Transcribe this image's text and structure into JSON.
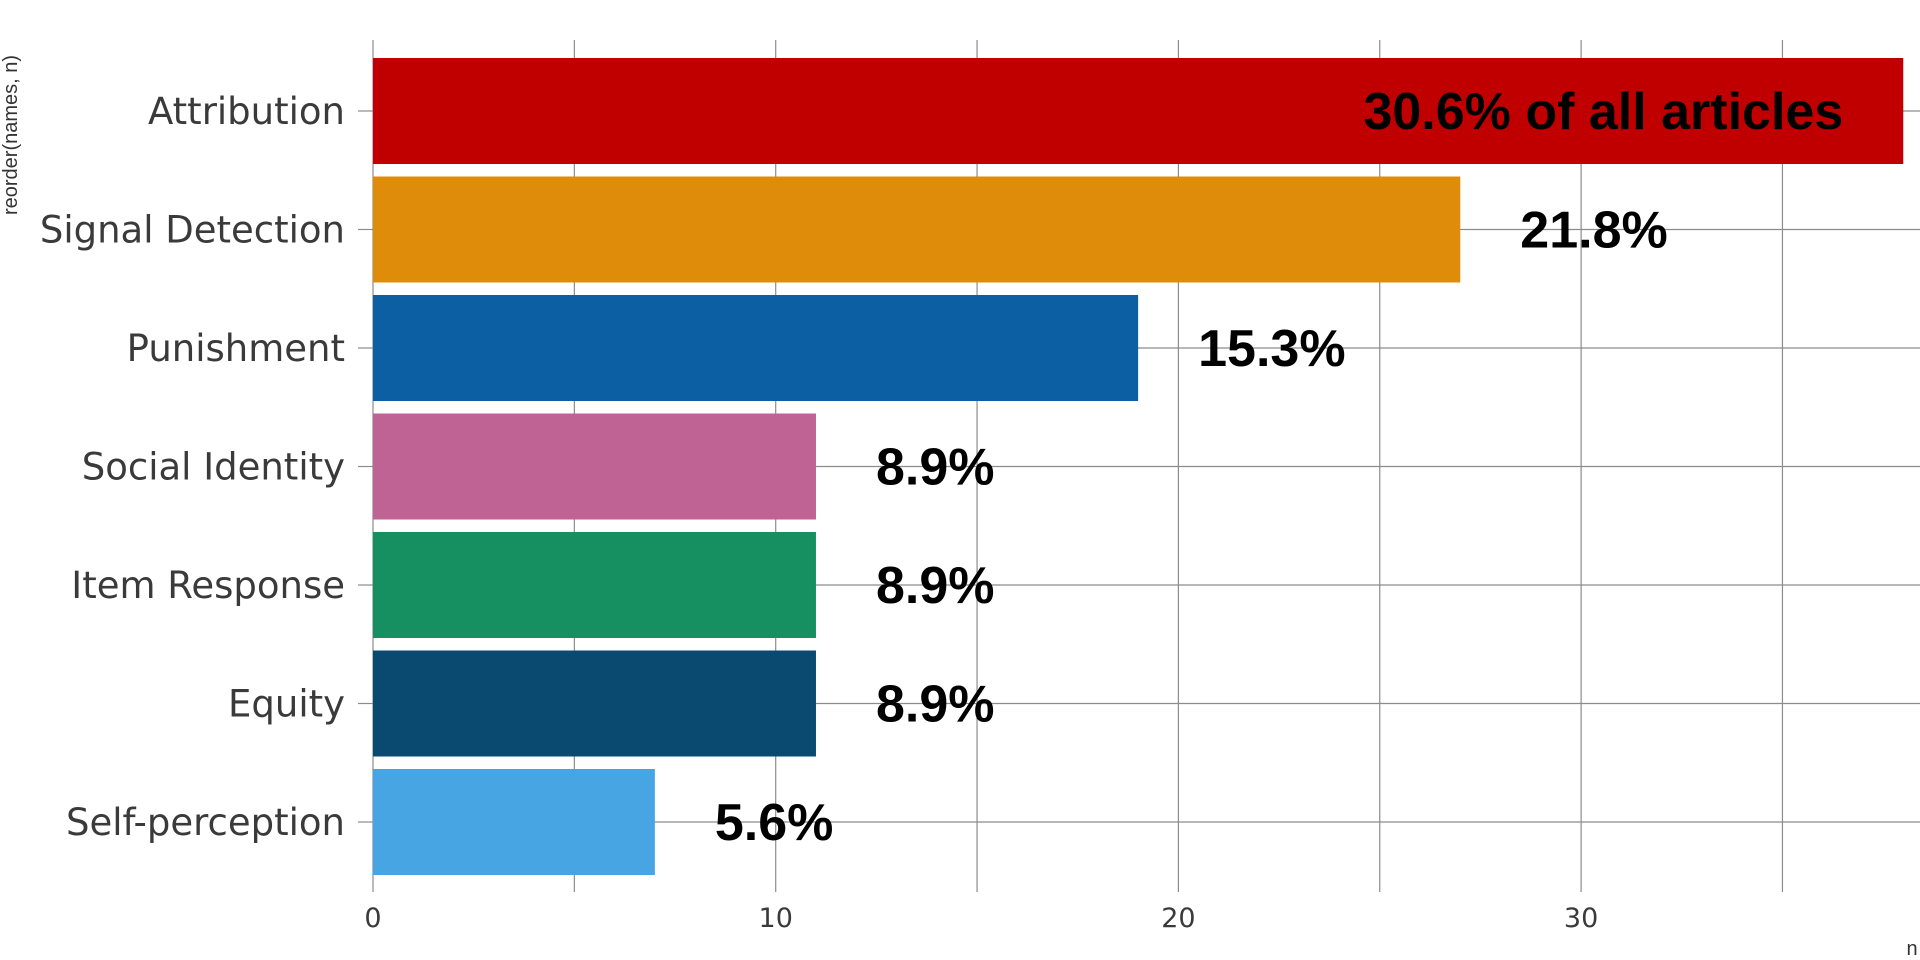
{
  "chart_data": {
    "type": "bar",
    "orientation": "horizontal",
    "categories": [
      "Attribution",
      "Signal Detection",
      "Punishment",
      "Social Identity",
      "Item Response",
      "Equity",
      "Self-perception"
    ],
    "values": [
      38,
      27,
      19,
      11,
      11,
      11,
      7
    ],
    "labels": [
      "30.6% of all articles",
      "21.8%",
      "15.3%",
      "8.9%",
      "8.9%",
      "8.9%",
      "5.6%"
    ],
    "colors": [
      "#C00000",
      "#DF8C0A",
      "#0D5FA3",
      "#BF6294",
      "#168F61",
      "#0B4A70",
      "#48A5E3"
    ],
    "xlabel": "n",
    "ylabel": "reorder(names, n)",
    "xlim": [
      0,
      38
    ],
    "xticks": [
      0,
      10,
      20,
      30
    ],
    "grid": true,
    "legend": "none"
  }
}
